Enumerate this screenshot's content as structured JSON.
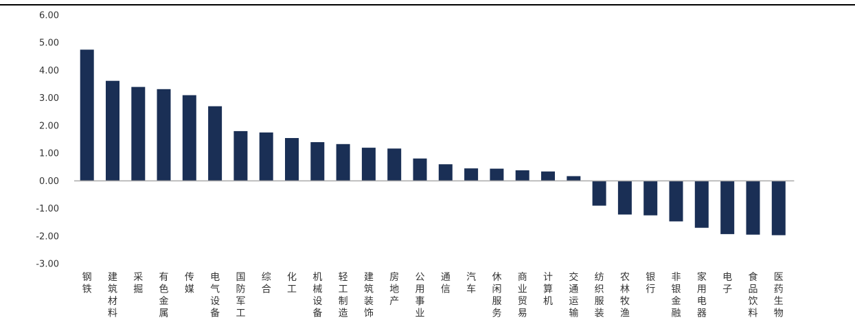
{
  "chart_data": {
    "type": "bar",
    "title": "",
    "xlabel": "",
    "ylabel": "",
    "ylim": [
      -3,
      6
    ],
    "yticks": [
      "6.00",
      "5.00",
      "4.00",
      "3.00",
      "2.00",
      "1.00",
      "0.00",
      "-1.00",
      "-2.00",
      "-3.00"
    ],
    "grid": false,
    "legend": "none",
    "bar_color": "#1a2f55",
    "axis_color": "#aaaaaa",
    "categories": [
      "钢铁",
      "建筑材料",
      "采掘",
      "有色金属",
      "传媒",
      "电气设备",
      "国防军工",
      "综合",
      "化工",
      "机械设备",
      "轻工制造",
      "建筑装饰",
      "房地产",
      "公用事业",
      "通信",
      "汽车",
      "休闲服务",
      "商业贸易",
      "计算机",
      "交通运输",
      "纺织服装",
      "农林牧渔",
      "银行",
      "非银金融",
      "家用电器",
      "电子",
      "食品饮料",
      "医药生物"
    ],
    "values": [
      4.75,
      3.62,
      3.4,
      3.32,
      3.1,
      2.7,
      1.8,
      1.75,
      1.55,
      1.4,
      1.33,
      1.2,
      1.17,
      0.81,
      0.6,
      0.45,
      0.44,
      0.38,
      0.34,
      0.17,
      -0.9,
      -1.22,
      -1.25,
      -1.47,
      -1.7,
      -1.93,
      -1.95,
      -1.97
    ]
  }
}
